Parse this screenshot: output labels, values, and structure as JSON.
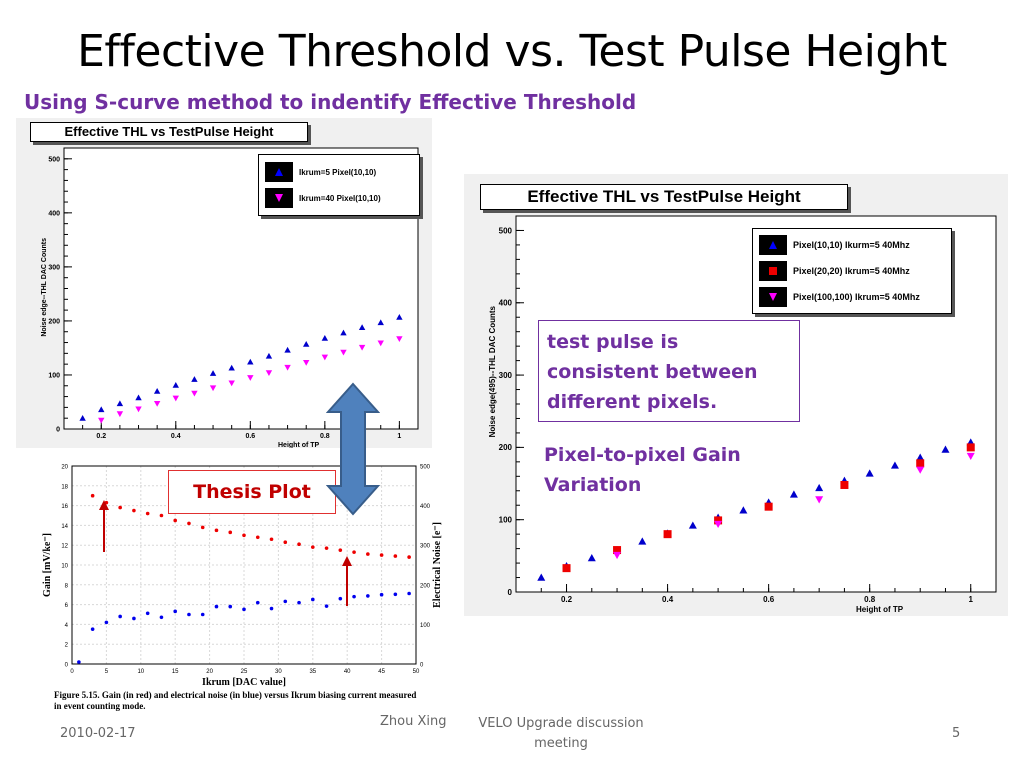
{
  "slide": {
    "title": "Effective Threshold vs. Test Pulse Height",
    "subtitle": "Using S-curve method to indentify Effective Threshold",
    "thesis_label": "Thesis Plot",
    "note_box": "test pulse is consistent between different pixels.",
    "gain_note": "Pixel-to-pixel Gain Variation",
    "caption": "Figure 5.15. Gain (in red) and electrical noise (in blue) versus Ikrum biasing current measured in event counting mode.",
    "footer": {
      "date": "2010-02-17",
      "author": "Zhou Xing",
      "event": "VELO Upgrade discussion meeting",
      "page": "5"
    }
  },
  "colors": {
    "title": "#000000",
    "subtitle": "#7030a0",
    "thesis": "#c00000",
    "arrow_fill": "#4f81bd",
    "arrow_stroke": "#385d8a"
  },
  "chart_data": [
    {
      "type": "scatter",
      "title": "Effective THL vs TestPulse Height",
      "xlabel": "Height of TP",
      "ylabel": "Noise edge--THL DAC Counts",
      "xlim": [
        0.1,
        1.05
      ],
      "ylim": [
        0,
        520
      ],
      "xticks": [
        0.2,
        0.4,
        0.6,
        0.8,
        1
      ],
      "yticks": [
        0,
        100,
        200,
        300,
        400,
        500
      ],
      "legend": "top-right",
      "series": [
        {
          "name": "Ikrum=5  Pixel(10,10)",
          "marker": "triangle-up",
          "color": "#0000cc",
          "x": [
            0.15,
            0.2,
            0.25,
            0.3,
            0.35,
            0.4,
            0.45,
            0.5,
            0.55,
            0.6,
            0.65,
            0.7,
            0.75,
            0.8,
            0.85,
            0.9,
            0.95,
            1.0
          ],
          "y": [
            20,
            36,
            47,
            58,
            70,
            81,
            92,
            103,
            113,
            124,
            135,
            146,
            157,
            168,
            178,
            188,
            197,
            207
          ]
        },
        {
          "name": "Ikrum=40 Pixel(10,10)",
          "marker": "triangle-down",
          "color": "#ff00ff",
          "x": [
            0.2,
            0.25,
            0.3,
            0.35,
            0.4,
            0.45,
            0.5,
            0.55,
            0.6,
            0.65,
            0.7,
            0.75,
            0.8,
            0.85,
            0.9,
            0.95,
            1.0
          ],
          "y": [
            16,
            28,
            37,
            47,
            57,
            66,
            76,
            85,
            95,
            104,
            114,
            123,
            133,
            142,
            151,
            159,
            167
          ]
        }
      ]
    },
    {
      "type": "scatter",
      "title": "Effective THL vs TestPulse Height",
      "xlabel": "Height of TP",
      "ylabel": "Noise edge(495)--THL DAC Counts",
      "xlim": [
        0.1,
        1.05
      ],
      "ylim": [
        0,
        520
      ],
      "xticks": [
        0.2,
        0.4,
        0.6,
        0.8,
        1
      ],
      "yticks": [
        0,
        100,
        200,
        300,
        400,
        500
      ],
      "legend": "top-right",
      "series": [
        {
          "name": "Pixel(10,10)  Ikurm=5  40Mhz",
          "marker": "triangle-up",
          "color": "#0000cc",
          "x": [
            0.15,
            0.2,
            0.25,
            0.3,
            0.35,
            0.4,
            0.45,
            0.5,
            0.55,
            0.6,
            0.65,
            0.7,
            0.75,
            0.8,
            0.85,
            0.9,
            0.95,
            1.0
          ],
          "y": [
            20,
            36,
            47,
            58,
            70,
            81,
            92,
            103,
            113,
            124,
            135,
            144,
            154,
            164,
            175,
            186,
            197,
            207
          ]
        },
        {
          "name": "Pixel(20,20) Ikrum=5 40Mhz",
          "marker": "square",
          "color": "#ee0000",
          "x": [
            0.2,
            0.3,
            0.4,
            0.5,
            0.6,
            0.75,
            0.9,
            1.0
          ],
          "y": [
            33,
            58,
            80,
            99,
            118,
            148,
            178,
            200
          ]
        },
        {
          "name": "Pixel(100,100) Ikrum=5 40Mhz",
          "marker": "triangle-down",
          "color": "#ff00ff",
          "x": [
            0.3,
            0.5,
            0.7,
            0.9,
            1.0
          ],
          "y": [
            51,
            94,
            128,
            169,
            188
          ]
        }
      ]
    },
    {
      "type": "scatter",
      "title": "",
      "xlabel": "Ikrum [DAC value]",
      "ylabel": "Gain [mV/ke⁻]",
      "y2label": "Electrical Noise [e⁻]",
      "xlim": [
        0,
        50
      ],
      "ylim": [
        0,
        20
      ],
      "y2lim": [
        0,
        500
      ],
      "xticks": [
        0,
        5,
        10,
        15,
        20,
        25,
        30,
        35,
        40,
        45,
        50
      ],
      "yticks": [
        0,
        2,
        4,
        6,
        8,
        10,
        12,
        14,
        16,
        18,
        20
      ],
      "y2ticks": [
        0,
        100,
        200,
        300,
        400,
        500
      ],
      "series": [
        {
          "name": "Gain",
          "axis": "left",
          "color": "#ee0000",
          "x": [
            3,
            5,
            7,
            9,
            11,
            13,
            15,
            17,
            19,
            21,
            23,
            25,
            27,
            29,
            31,
            33,
            35,
            37,
            39,
            41,
            43,
            45,
            47,
            49
          ],
          "y": [
            17.0,
            16.3,
            15.8,
            15.5,
            15.2,
            15.0,
            14.5,
            14.2,
            13.8,
            13.5,
            13.3,
            13.0,
            12.8,
            12.6,
            12.3,
            12.1,
            11.8,
            11.7,
            11.5,
            11.3,
            11.1,
            11.0,
            10.9,
            10.8
          ]
        },
        {
          "name": "Electrical Noise",
          "axis": "right",
          "color": "#0000ee",
          "x": [
            1,
            3,
            5,
            7,
            9,
            11,
            13,
            15,
            17,
            19,
            21,
            23,
            25,
            27,
            29,
            31,
            33,
            35,
            37,
            39,
            41,
            43,
            45,
            47,
            49
          ],
          "y": [
            5,
            88,
            105,
            120,
            115,
            128,
            118,
            133,
            125,
            125,
            145,
            145,
            138,
            155,
            140,
            158,
            155,
            163,
            146,
            165,
            170,
            172,
            175,
            176,
            178
          ]
        }
      ]
    }
  ]
}
